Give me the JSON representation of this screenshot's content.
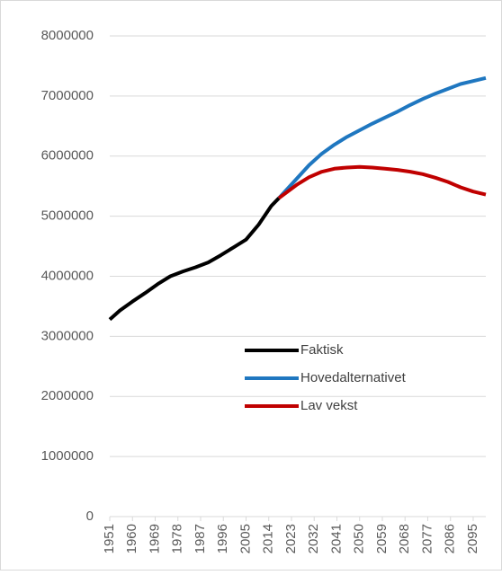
{
  "chart_data": {
    "type": "line",
    "x": [
      1951,
      1955,
      1960,
      1965,
      1970,
      1975,
      1980,
      1985,
      1990,
      1995,
      2000,
      2005,
      2010,
      2015,
      2018,
      2025,
      2030,
      2035,
      2040,
      2045,
      2050,
      2055,
      2060,
      2065,
      2070,
      2075,
      2080,
      2085,
      2090,
      2095,
      2100
    ],
    "series": [
      {
        "name": "Faktisk",
        "color": "#000000",
        "values": [
          3280000,
          3430000,
          3580000,
          3720000,
          3870000,
          4000000,
          4080000,
          4150000,
          4230000,
          4350000,
          4480000,
          4610000,
          4860000,
          5170000,
          5300000,
          null,
          null,
          null,
          null,
          null,
          null,
          null,
          null,
          null,
          null,
          null,
          null,
          null,
          null,
          null,
          null
        ]
      },
      {
        "name": "Hovedalternativet",
        "color": "#1f77c0",
        "values": [
          null,
          null,
          null,
          null,
          null,
          null,
          null,
          null,
          null,
          null,
          null,
          null,
          null,
          null,
          5300000,
          5620000,
          5850000,
          6040000,
          6190000,
          6320000,
          6430000,
          6540000,
          6640000,
          6740000,
          6850000,
          6950000,
          7040000,
          7120000,
          7200000,
          7250000,
          7300000
        ]
      },
      {
        "name": "Lav vekst",
        "color": "#c00000",
        "values": [
          null,
          null,
          null,
          null,
          null,
          null,
          null,
          null,
          null,
          null,
          null,
          null,
          null,
          null,
          5300000,
          5520000,
          5650000,
          5740000,
          5790000,
          5810000,
          5820000,
          5810000,
          5790000,
          5770000,
          5740000,
          5700000,
          5640000,
          5570000,
          5480000,
          5410000,
          5360000
        ]
      }
    ],
    "xlim": [
      1951,
      2100
    ],
    "xticks": [
      1951,
      1960,
      1969,
      1978,
      1987,
      1996,
      2005,
      2014,
      2023,
      2032,
      2041,
      2050,
      2059,
      2068,
      2077,
      2086,
      2095
    ],
    "ylim": [
      0,
      8000000
    ],
    "yticks": [
      0,
      1000000,
      2000000,
      3000000,
      4000000,
      5000000,
      6000000,
      7000000,
      8000000
    ],
    "grid": true
  }
}
